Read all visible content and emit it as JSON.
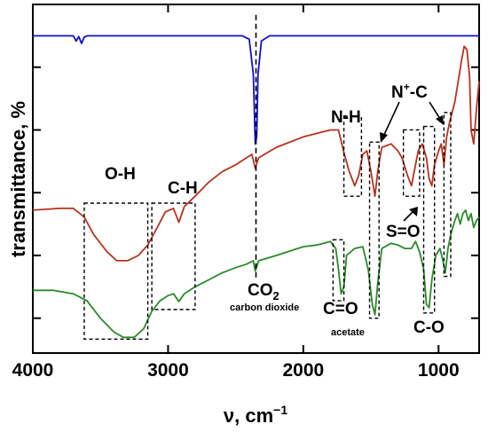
{
  "chart_data": {
    "type": "line",
    "title": "",
    "xlabel": "ν, cm⁻¹",
    "xlabel_main": "ν, cm",
    "xlabel_sup": "−1",
    "ylabel": "transmittance, %",
    "xlim": [
      4000,
      700
    ],
    "x_reversed": true,
    "xticks": [
      4000,
      3000,
      2000,
      1000
    ],
    "xtick_labels": [
      "4000",
      "3000",
      "2000",
      "1000"
    ],
    "ylim": [
      0,
      100
    ],
    "ytick_values": [
      10,
      28,
      46,
      64,
      82
    ],
    "grid": false,
    "legend": "none",
    "series": [
      {
        "color": "#1010cc",
        "points": [
          [
            4000,
            91
          ],
          [
            3700,
            91
          ],
          [
            3680,
            89.5
          ],
          [
            3660,
            90.8
          ],
          [
            3640,
            88.8
          ],
          [
            3620,
            90.6
          ],
          [
            3600,
            91
          ],
          [
            2450,
            91
          ],
          [
            2400,
            90
          ],
          [
            2370,
            80
          ],
          [
            2355,
            60
          ],
          [
            2345,
            62
          ],
          [
            2335,
            80
          ],
          [
            2310,
            89.5
          ],
          [
            2250,
            91
          ],
          [
            700,
            91
          ]
        ]
      },
      {
        "color": "#b8321e",
        "points": [
          [
            4000,
            41
          ],
          [
            3800,
            41.5
          ],
          [
            3700,
            41.5
          ],
          [
            3620,
            39
          ],
          [
            3550,
            34
          ],
          [
            3450,
            29
          ],
          [
            3380,
            26.5
          ],
          [
            3300,
            26.5
          ],
          [
            3220,
            28
          ],
          [
            3150,
            31
          ],
          [
            3080,
            36
          ],
          [
            3020,
            40.5
          ],
          [
            2960,
            41.5
          ],
          [
            2920,
            37.5
          ],
          [
            2880,
            42
          ],
          [
            2800,
            45
          ],
          [
            2700,
            49
          ],
          [
            2600,
            52
          ],
          [
            2500,
            54
          ],
          [
            2420,
            56
          ],
          [
            2380,
            57
          ],
          [
            2355,
            53
          ],
          [
            2330,
            56
          ],
          [
            2200,
            59
          ],
          [
            2000,
            62
          ],
          [
            1900,
            63
          ],
          [
            1800,
            64
          ],
          [
            1740,
            64
          ],
          [
            1700,
            57.5
          ],
          [
            1660,
            52
          ],
          [
            1620,
            48
          ],
          [
            1590,
            51
          ],
          [
            1560,
            57
          ],
          [
            1530,
            58
          ],
          [
            1500,
            52
          ],
          [
            1470,
            45
          ],
          [
            1450,
            52
          ],
          [
            1420,
            59
          ],
          [
            1350,
            60
          ],
          [
            1300,
            58
          ],
          [
            1270,
            56
          ],
          [
            1230,
            51
          ],
          [
            1200,
            48
          ],
          [
            1180,
            52
          ],
          [
            1150,
            58
          ],
          [
            1120,
            60
          ],
          [
            1090,
            56
          ],
          [
            1070,
            50
          ],
          [
            1050,
            48
          ],
          [
            1030,
            54
          ],
          [
            1000,
            58
          ],
          [
            980,
            60
          ],
          [
            960,
            54
          ],
          [
            940,
            62
          ],
          [
            920,
            66
          ],
          [
            880,
            72
          ],
          [
            850,
            79
          ],
          [
            830,
            84
          ],
          [
            810,
            88
          ],
          [
            790,
            87
          ],
          [
            770,
            79
          ],
          [
            760,
            64
          ],
          [
            740,
            60
          ],
          [
            720,
            70
          ],
          [
            700,
            78
          ]
        ]
      },
      {
        "color": "#2a8a2a",
        "points": [
          [
            4000,
            18
          ],
          [
            3850,
            18
          ],
          [
            3700,
            17
          ],
          [
            3600,
            15
          ],
          [
            3500,
            10
          ],
          [
            3400,
            6
          ],
          [
            3330,
            4.5
          ],
          [
            3250,
            4.5
          ],
          [
            3180,
            7
          ],
          [
            3120,
            12
          ],
          [
            3060,
            15
          ],
          [
            3000,
            16.5
          ],
          [
            2960,
            17
          ],
          [
            2920,
            14.8
          ],
          [
            2880,
            17
          ],
          [
            2800,
            19
          ],
          [
            2700,
            21
          ],
          [
            2600,
            23
          ],
          [
            2500,
            24.5
          ],
          [
            2420,
            25.5
          ],
          [
            2370,
            26.5
          ],
          [
            2355,
            23.5
          ],
          [
            2330,
            26.5
          ],
          [
            2200,
            28
          ],
          [
            2000,
            30.5
          ],
          [
            1900,
            31
          ],
          [
            1800,
            32
          ],
          [
            1760,
            30
          ],
          [
            1740,
            24
          ],
          [
            1720,
            17
          ],
          [
            1700,
            19
          ],
          [
            1680,
            28
          ],
          [
            1620,
            30
          ],
          [
            1560,
            30.5
          ],
          [
            1520,
            24
          ],
          [
            1490,
            14
          ],
          [
            1470,
            11
          ],
          [
            1450,
            20
          ],
          [
            1420,
            30
          ],
          [
            1350,
            31.5
          ],
          [
            1300,
            31
          ],
          [
            1250,
            30
          ],
          [
            1200,
            30
          ],
          [
            1170,
            32
          ],
          [
            1140,
            29
          ],
          [
            1110,
            24
          ],
          [
            1090,
            14
          ],
          [
            1070,
            13
          ],
          [
            1050,
            21
          ],
          [
            1020,
            28
          ],
          [
            990,
            30
          ],
          [
            970,
            27
          ],
          [
            950,
            23
          ],
          [
            930,
            30
          ],
          [
            910,
            34
          ],
          [
            880,
            38
          ],
          [
            860,
            40
          ],
          [
            840,
            37
          ],
          [
            820,
            40
          ],
          [
            800,
            41
          ],
          [
            780,
            38
          ],
          [
            760,
            40
          ],
          [
            740,
            36
          ],
          [
            720,
            38
          ],
          [
            700,
            39
          ]
        ]
      }
    ],
    "dashed_vline": {
      "x": 2350
    },
    "boxes": [
      {
        "x0": 3620,
        "x1": 3150,
        "y0": 4,
        "y1": 43
      },
      {
        "x0": 3120,
        "x1": 2800,
        "y0": 12.5,
        "y1": 43
      },
      {
        "x0": 1780,
        "x1": 1700,
        "y0": 15,
        "y1": 32.5
      },
      {
        "x0": 1700,
        "x1": 1570,
        "y0": 45,
        "y1": 68
      },
      {
        "x0": 1510,
        "x1": 1440,
        "y0": 10,
        "y1": 60.5
      },
      {
        "x0": 1260,
        "x1": 1140,
        "y0": 45,
        "y1": 64
      },
      {
        "x0": 1110,
        "x1": 1030,
        "y0": 11.5,
        "y1": 65
      },
      {
        "x0": 960,
        "x1": 910,
        "y0": 22,
        "y1": 69
      }
    ],
    "annotations": [
      {
        "text": "O-H"
      },
      {
        "text": "C-H"
      },
      {
        "text": "N-H"
      },
      {
        "text": "N",
        "sup": "+",
        "rest": "-C"
      },
      {
        "text": "S=O"
      },
      {
        "text": "C=O"
      },
      {
        "text": "acetate"
      },
      {
        "text": "C-O"
      },
      {
        "text": "CO",
        "sub": "2"
      },
      {
        "text": "carbon dioxide"
      }
    ]
  }
}
